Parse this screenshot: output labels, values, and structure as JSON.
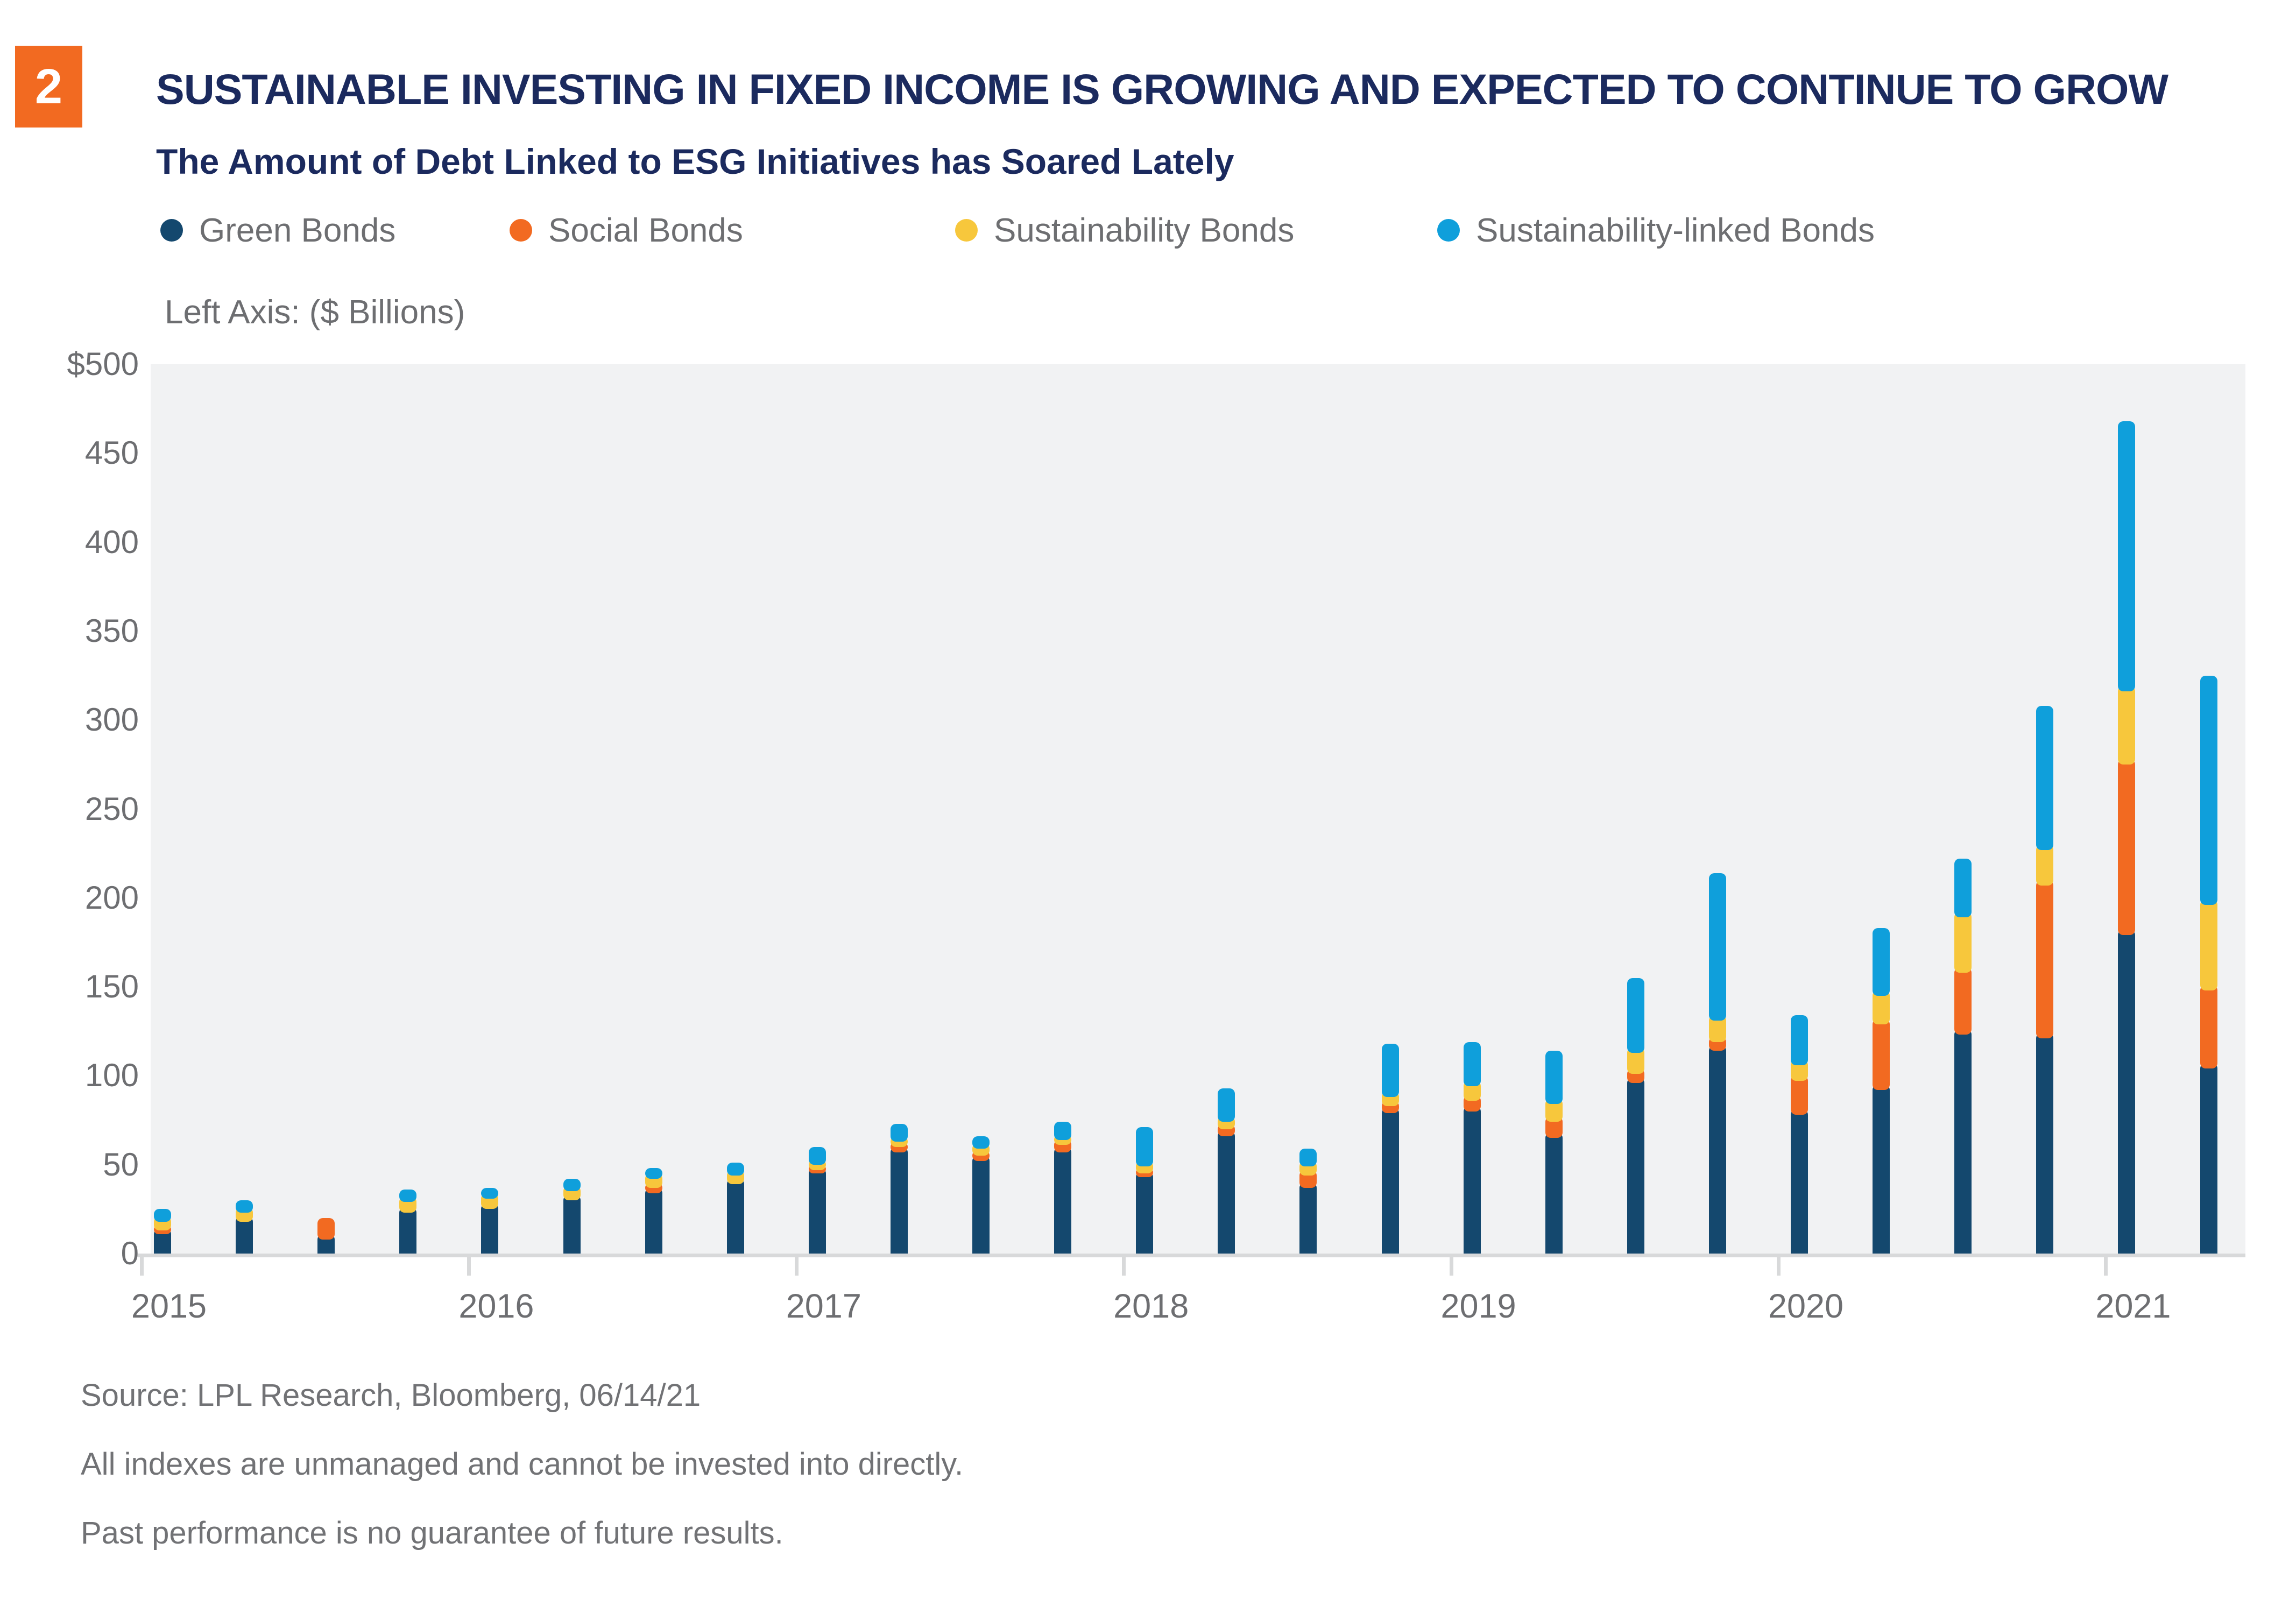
{
  "badge": {
    "number": "2",
    "color": "#f26a21"
  },
  "header": {
    "title": "SUSTAINABLE INVESTING IN FIXED INCOME IS GROWING AND EXPECTED TO CONTINUE TO GROW",
    "subtitle": "The Amount of Debt Linked to ESG Initiatives has Soared Lately",
    "title_color": "#1b2a5e"
  },
  "legend": [
    {
      "label": "Green Bonds",
      "color": "#14486e"
    },
    {
      "label": "Social Bonds",
      "color": "#f26a21"
    },
    {
      "label": "Sustainability Bonds",
      "color": "#f7c73c"
    },
    {
      "label": "Sustainability-linked Bonds",
      "color": "#0f9fdb"
    }
  ],
  "axis_note": "Left Axis: ($ Billions)",
  "chart_data": {
    "type": "bar",
    "stacked": true,
    "title": "The Amount of Debt Linked to ESG Initiatives has Soared Lately",
    "xlabel": "",
    "ylabel": "($ Billions)",
    "ylim": [
      0,
      500
    ],
    "grid": false,
    "legend_position": "top",
    "y_ticks": [
      {
        "label": "$500",
        "value": 500
      },
      {
        "label": "450",
        "value": 450
      },
      {
        "label": "400",
        "value": 400
      },
      {
        "label": "350",
        "value": 350
      },
      {
        "label": "300",
        "value": 300
      },
      {
        "label": "250",
        "value": 250
      },
      {
        "label": "200",
        "value": 200
      },
      {
        "label": "150",
        "value": 150
      },
      {
        "label": "100",
        "value": 100
      },
      {
        "label": "50",
        "value": 50
      },
      {
        "label": "0",
        "value": 0
      }
    ],
    "categories": [
      "2015 Q1",
      "2015 Q2",
      "2015 Q3",
      "2015 Q4",
      "2016 Q1",
      "2016 Q2",
      "2016 Q3",
      "2016 Q4",
      "2017 Q1",
      "2017 Q2",
      "2017 Q3",
      "2017 Q4",
      "2018 Q1",
      "2018 Q2",
      "2018 Q3",
      "2018 Q4",
      "2019 Q1",
      "2019 Q2",
      "2019 Q3",
      "2019 Q4",
      "2020 Q1",
      "2020 Q2",
      "2020 Q3",
      "2020 Q4",
      "2021 Q1",
      "2021 Q2"
    ],
    "x_year_labels": [
      {
        "label": "2015",
        "category_index": 0
      },
      {
        "label": "2016",
        "category_index": 4
      },
      {
        "label": "2017",
        "category_index": 8
      },
      {
        "label": "2018",
        "category_index": 12
      },
      {
        "label": "2019",
        "category_index": 16
      },
      {
        "label": "2020",
        "category_index": 20
      },
      {
        "label": "2021",
        "category_index": 24
      }
    ],
    "series": [
      {
        "name": "Green Bonds",
        "color": "#14486e",
        "values": [
          14,
          21,
          11,
          26,
          28,
          33,
          37,
          42,
          48,
          60,
          55,
          60,
          46,
          69,
          40,
          82,
          83,
          68,
          99,
          117,
          81,
          95,
          126,
          124,
          182,
          107
        ]
      },
      {
        "name": "Social Bonds",
        "color": "#f26a21",
        "values": [
          2,
          0,
          9,
          0,
          0,
          0,
          3,
          0,
          2,
          3,
          3,
          4,
          2,
          4,
          7,
          4,
          6,
          9,
          5,
          5,
          19,
          37,
          35,
          86,
          96,
          44
        ]
      },
      {
        "name": "Sustainability Bonds",
        "color": "#f7c73c",
        "values": [
          5,
          5,
          0,
          6,
          6,
          5,
          5,
          5,
          3,
          3,
          4,
          3,
          4,
          4,
          5,
          5,
          8,
          10,
          12,
          12,
          9,
          16,
          31,
          20,
          41,
          48
        ]
      },
      {
        "name": "Sustainability-linked Bonds",
        "color": "#0f9fdb",
        "values": [
          4,
          4,
          0,
          4,
          3,
          4,
          3,
          4,
          7,
          7,
          4,
          7,
          19,
          16,
          7,
          27,
          22,
          27,
          39,
          80,
          25,
          35,
          30,
          78,
          149,
          126
        ]
      }
    ]
  },
  "footer": {
    "source_line": "Source: LPL Research, Bloomberg,  06/14/21",
    "disclaimer_1": "All indexes are unmanaged and cannot be invested into directly.",
    "disclaimer_2": "Past performance is no guarantee of future results."
  }
}
